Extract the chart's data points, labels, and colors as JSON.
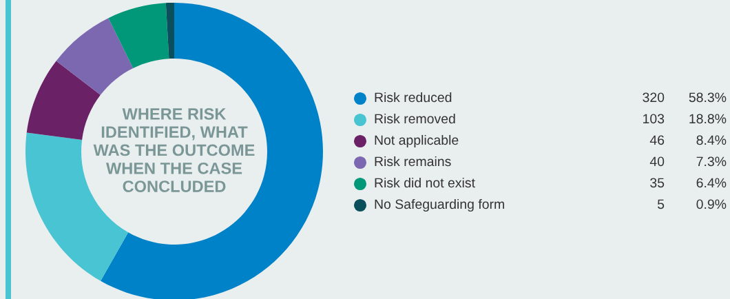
{
  "chart_data": {
    "type": "donut",
    "title": "WHERE RISK\nIDENTIFIED, WHAT\nWAS THE OUTCOME\nWHEN THE CASE\nCONCLUDED",
    "categories": [
      "Risk reduced",
      "Risk removed",
      "Not applicable",
      "Risk remains",
      "Risk did not exist",
      "No Safeguarding form"
    ],
    "values": [
      58.3,
      18.8,
      8.4,
      7.3,
      6.4,
      0.9
    ],
    "annotations": [
      "320",
      "103",
      "46",
      "40",
      "35",
      "5"
    ],
    "value_labels": [
      "58.3%",
      "18.8%",
      "8.4%",
      "7.3%",
      "6.4%",
      "0.9%"
    ],
    "colors": [
      "#0082c8",
      "#48c4d2",
      "#6b2166",
      "#7c68b0",
      "#009878",
      "#0b4f5c"
    ],
    "legend": "right"
  }
}
